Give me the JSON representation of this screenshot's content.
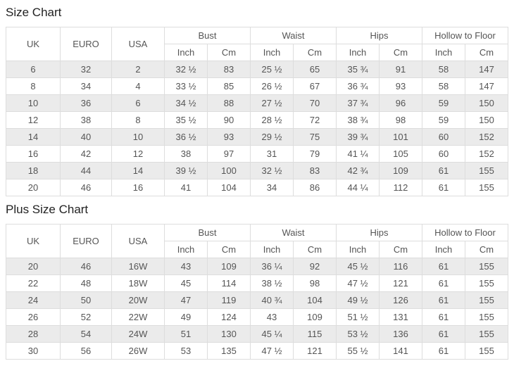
{
  "colors": {
    "stripe": "#ebebeb",
    "border": "#dddddd",
    "cell_text": "#555555",
    "title_text": "#222222",
    "background": "#ffffff"
  },
  "columns": {
    "uk": "UK",
    "euro": "EURO",
    "usa": "USA",
    "bust": "Bust",
    "waist": "Waist",
    "hips": "Hips",
    "hollow_to_floor": "Hollow to Floor",
    "inch": "Inch",
    "cm": "Cm"
  },
  "tables": [
    {
      "title": "Size Chart",
      "rows": [
        [
          "6",
          "32",
          "2",
          "32 ½",
          "83",
          "25 ½",
          "65",
          "35 ¾",
          "91",
          "58",
          "147"
        ],
        [
          "8",
          "34",
          "4",
          "33 ½",
          "85",
          "26 ½",
          "67",
          "36 ¾",
          "93",
          "58",
          "147"
        ],
        [
          "10",
          "36",
          "6",
          "34 ½",
          "88",
          "27 ½",
          "70",
          "37 ¾",
          "96",
          "59",
          "150"
        ],
        [
          "12",
          "38",
          "8",
          "35 ½",
          "90",
          "28 ½",
          "72",
          "38 ¾",
          "98",
          "59",
          "150"
        ],
        [
          "14",
          "40",
          "10",
          "36 ½",
          "93",
          "29 ½",
          "75",
          "39 ¾",
          "101",
          "60",
          "152"
        ],
        [
          "16",
          "42",
          "12",
          "38",
          "97",
          "31",
          "79",
          "41 ¼",
          "105",
          "60",
          "152"
        ],
        [
          "18",
          "44",
          "14",
          "39 ½",
          "100",
          "32 ½",
          "83",
          "42 ¾",
          "109",
          "61",
          "155"
        ],
        [
          "20",
          "46",
          "16",
          "41",
          "104",
          "34",
          "86",
          "44 ¼",
          "112",
          "61",
          "155"
        ]
      ]
    },
    {
      "title": "Plus Size Chart",
      "rows": [
        [
          "20",
          "46",
          "16W",
          "43",
          "109",
          "36 ¼",
          "92",
          "45 ½",
          "116",
          "61",
          "155"
        ],
        [
          "22",
          "48",
          "18W",
          "45",
          "114",
          "38 ½",
          "98",
          "47 ½",
          "121",
          "61",
          "155"
        ],
        [
          "24",
          "50",
          "20W",
          "47",
          "119",
          "40 ¾",
          "104",
          "49 ½",
          "126",
          "61",
          "155"
        ],
        [
          "26",
          "52",
          "22W",
          "49",
          "124",
          "43",
          "109",
          "51 ½",
          "131",
          "61",
          "155"
        ],
        [
          "28",
          "54",
          "24W",
          "51",
          "130",
          "45 ¼",
          "115",
          "53 ½",
          "136",
          "61",
          "155"
        ],
        [
          "30",
          "56",
          "26W",
          "53",
          "135",
          "47 ½",
          "121",
          "55 ½",
          "141",
          "61",
          "155"
        ]
      ]
    }
  ]
}
